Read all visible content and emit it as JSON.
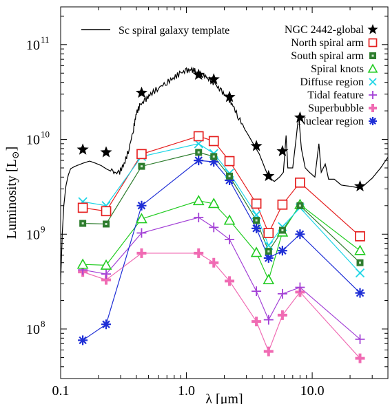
{
  "chart_data": {
    "type": "scatter",
    "title": "",
    "xlabel": "λ [μm]",
    "ylabel": "Luminosity [L",
    "ylabel_symbol": "⊙",
    "ylabel_close": "]",
    "xscale": "log",
    "yscale": "log",
    "xlim": [
      0.1,
      40
    ],
    "ylim": [
      30000000,
      250000000000
    ],
    "x_ticks": [
      {
        "value": 0.1,
        "label": "0.1"
      },
      {
        "value": 1.0,
        "label": "1.0"
      },
      {
        "value": 10.0,
        "label": "10.0"
      }
    ],
    "y_ticks": [
      {
        "value": 100000000,
        "base": "10",
        "exp": "8"
      },
      {
        "value": 1000000000,
        "base": "10",
        "exp": "9"
      },
      {
        "value": 10000000000,
        "base": "10",
        "exp": "10"
      },
      {
        "value": 100000000000,
        "base": "10",
        "exp": "11"
      }
    ],
    "grid": false,
    "legend_position": "top-right",
    "template": {
      "name": "Sc spiral galaxy template",
      "color": "#000000",
      "points": [
        [
          0.1,
          320000000
        ],
        [
          0.103,
          1000000000
        ],
        [
          0.106,
          2000000000
        ],
        [
          0.11,
          3200000000
        ],
        [
          0.115,
          4200000000
        ],
        [
          0.12,
          4900000000
        ],
        [
          0.13,
          5200000000
        ],
        [
          0.14,
          5400000000
        ],
        [
          0.15,
          5600000000
        ],
        [
          0.17,
          5900000000
        ],
        [
          0.19,
          5600000000
        ],
        [
          0.21,
          5300000000
        ],
        [
          0.23,
          4900000000
        ],
        [
          0.26,
          4500000000
        ],
        [
          0.29,
          4400000000
        ],
        [
          0.32,
          5500000000
        ],
        [
          0.35,
          8000000000
        ],
        [
          0.38,
          13000000000
        ],
        [
          0.4,
          19000000000
        ],
        [
          0.43,
          23000000000
        ],
        [
          0.47,
          26000000000
        ],
        [
          0.52,
          30000000000
        ],
        [
          0.6,
          35000000000
        ],
        [
          0.7,
          40000000000
        ],
        [
          0.8,
          45000000000
        ],
        [
          0.9,
          50000000000
        ],
        [
          1.0,
          53000000000
        ],
        [
          1.1,
          54000000000
        ],
        [
          1.2,
          52000000000
        ],
        [
          1.35,
          48000000000
        ],
        [
          1.5,
          44000000000
        ],
        [
          1.7,
          38000000000
        ],
        [
          1.9,
          32000000000
        ],
        [
          2.1,
          28000000000
        ],
        [
          2.3,
          24000000000
        ],
        [
          2.6,
          17000000000
        ],
        [
          3.0,
          12000000000
        ],
        [
          3.4,
          9000000000
        ],
        [
          3.8,
          7000000000
        ],
        [
          4.2,
          5000000000
        ],
        [
          4.5,
          4000000000
        ],
        [
          5.0,
          3600000000
        ],
        [
          5.5,
          4000000000
        ],
        [
          5.9,
          4500000000
        ],
        [
          6.2,
          11000000000
        ],
        [
          6.4,
          5000000000
        ],
        [
          7.0,
          5000000000
        ],
        [
          7.6,
          13000000000
        ],
        [
          7.8,
          18000000000
        ],
        [
          8.2,
          8000000000
        ],
        [
          8.8,
          5000000000
        ],
        [
          9.5,
          4500000000
        ],
        [
          10.5,
          4000000000
        ],
        [
          11.3,
          9000000000
        ],
        [
          11.8,
          4500000000
        ],
        [
          12.7,
          5500000000
        ],
        [
          13.5,
          3800000000
        ],
        [
          15,
          3800000000
        ],
        [
          17,
          3300000000
        ],
        [
          20,
          3200000000
        ],
        [
          23,
          3100000000
        ],
        [
          26,
          3300000000
        ],
        [
          30,
          3900000000
        ],
        [
          35,
          5000000000
        ],
        [
          40,
          6500000000
        ]
      ]
    },
    "series": [
      {
        "name": "NGC 2442-global",
        "color": "#000000",
        "marker": "star",
        "line": false,
        "points": [
          [
            0.15,
            7800000000
          ],
          [
            0.23,
            7300000000
          ],
          [
            0.44,
            31000000000
          ],
          [
            1.25,
            48000000000
          ],
          [
            1.65,
            43000000000
          ],
          [
            2.2,
            28000000000
          ],
          [
            3.6,
            8500000000
          ],
          [
            4.5,
            4100000000
          ],
          [
            5.8,
            7500000000
          ],
          [
            8.0,
            17000000000
          ],
          [
            24,
            3200000000
          ]
        ]
      },
      {
        "name": "North spiral arm",
        "color": "#e52020",
        "marker": "square",
        "line": true,
        "points": [
          [
            0.15,
            1900000000
          ],
          [
            0.23,
            1750000000
          ],
          [
            0.44,
            7000000000
          ],
          [
            1.25,
            10800000000
          ],
          [
            1.65,
            9600000000
          ],
          [
            2.2,
            5900000000
          ],
          [
            3.6,
            2100000000
          ],
          [
            4.5,
            1030000000
          ],
          [
            5.8,
            2050000000
          ],
          [
            8.0,
            3500000000
          ],
          [
            24,
            950000000
          ]
        ]
      },
      {
        "name": "South spiral arm",
        "color": "#2e7d2e",
        "marker": "dotsquare",
        "line": true,
        "points": [
          [
            0.15,
            1300000000
          ],
          [
            0.23,
            1280000000
          ],
          [
            0.44,
            5200000000
          ],
          [
            1.25,
            7300000000
          ],
          [
            1.65,
            6600000000
          ],
          [
            2.2,
            4100000000
          ],
          [
            3.6,
            1400000000
          ],
          [
            4.5,
            660000000
          ],
          [
            5.8,
            1100000000
          ],
          [
            8.0,
            2000000000
          ],
          [
            24,
            500000000
          ]
        ]
      },
      {
        "name": "Spiral knots",
        "color": "#22cc22",
        "marker": "triangle",
        "line": true,
        "points": [
          [
            0.15,
            480000000
          ],
          [
            0.23,
            470000000
          ],
          [
            0.44,
            1450000000
          ],
          [
            1.25,
            2250000000
          ],
          [
            1.65,
            2100000000
          ],
          [
            2.2,
            1400000000
          ],
          [
            3.6,
            640000000
          ],
          [
            4.5,
            330000000
          ],
          [
            5.8,
            1050000000
          ],
          [
            8.0,
            2050000000
          ],
          [
            24,
            670000000
          ]
        ]
      },
      {
        "name": "Diffuse region",
        "color": "#1dd5e6",
        "marker": "x",
        "line": true,
        "points": [
          [
            0.15,
            2200000000
          ],
          [
            0.23,
            2000000000
          ],
          [
            0.44,
            6600000000
          ],
          [
            1.25,
            9000000000
          ],
          [
            1.65,
            7100000000
          ],
          [
            2.2,
            4400000000
          ],
          [
            3.6,
            1600000000
          ],
          [
            4.5,
            760000000
          ],
          [
            5.8,
            1200000000
          ],
          [
            8.0,
            1900000000
          ],
          [
            24,
            390000000
          ]
        ]
      },
      {
        "name": "Tidal feature",
        "color": "#a340d6",
        "marker": "plus",
        "line": true,
        "points": [
          [
            0.15,
            420000000
          ],
          [
            0.23,
            380000000
          ],
          [
            0.44,
            1030000000
          ],
          [
            1.25,
            1500000000
          ],
          [
            1.65,
            1180000000
          ],
          [
            2.2,
            880000000
          ],
          [
            3.6,
            250000000
          ],
          [
            4.5,
            125000000
          ],
          [
            5.8,
            235000000
          ],
          [
            8.0,
            275000000
          ],
          [
            24,
            78000000
          ]
        ]
      },
      {
        "name": "Superbubble",
        "color": "#f06bb3",
        "marker": "thickplus",
        "line": true,
        "points": [
          [
            0.15,
            400000000
          ],
          [
            0.23,
            330000000
          ],
          [
            0.44,
            630000000
          ],
          [
            1.25,
            630000000
          ],
          [
            1.65,
            500000000
          ],
          [
            2.2,
            320000000
          ],
          [
            3.6,
            120000000
          ],
          [
            4.5,
            58000000
          ],
          [
            5.8,
            140000000
          ],
          [
            8.0,
            245000000
          ],
          [
            24,
            49000000
          ]
        ]
      },
      {
        "name": "Nuclear region",
        "color": "#1f2fd6",
        "marker": "asterisk",
        "line": true,
        "points": [
          [
            0.15,
            76000000
          ],
          [
            0.23,
            112000000
          ],
          [
            0.44,
            2000000000
          ],
          [
            1.25,
            6000000000
          ],
          [
            1.65,
            5800000000
          ],
          [
            2.2,
            3700000000
          ],
          [
            3.6,
            1150000000
          ],
          [
            4.5,
            560000000
          ],
          [
            5.8,
            670000000
          ],
          [
            8.0,
            1000000000
          ],
          [
            24,
            240000000
          ]
        ]
      }
    ]
  }
}
